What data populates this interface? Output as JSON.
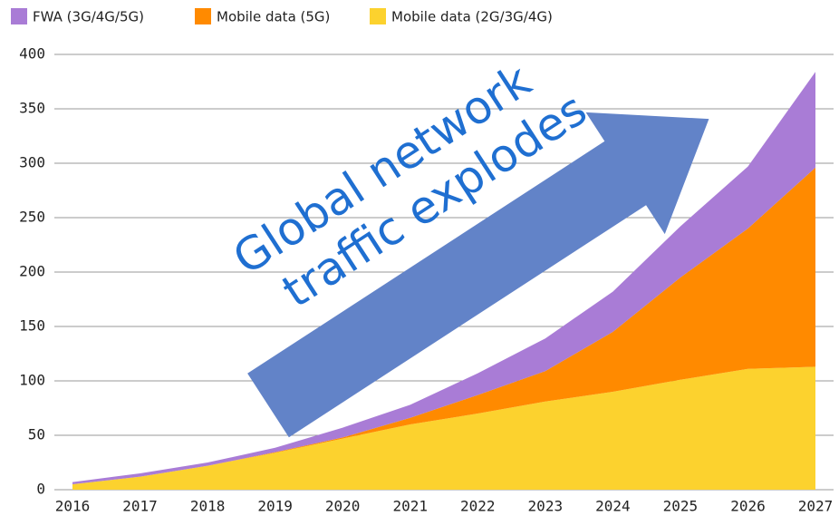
{
  "chart_data": {
    "type": "stacked_area",
    "categories": [
      "2016",
      "2017",
      "2018",
      "2019",
      "2020",
      "2021",
      "2022",
      "2023",
      "2024",
      "2025",
      "2026",
      "2027"
    ],
    "series": [
      {
        "name": "FWA (3G/4G/5G)",
        "color": "#a97cd6",
        "values": [
          2,
          3,
          3,
          4,
          9,
          12,
          20,
          30,
          37,
          47,
          57,
          88
        ]
      },
      {
        "name": "Mobile data (5G)",
        "color": "#ff8a00",
        "values": [
          0,
          0,
          0,
          0.5,
          1,
          6,
          17,
          28,
          55,
          94,
          129,
          183
        ]
      },
      {
        "name": "Mobile data (2G/3G/4G)",
        "color": "#fcd22e",
        "values": [
          5,
          12,
          22,
          34,
          47,
          60,
          70,
          81,
          90,
          101,
          111,
          113
        ]
      }
    ],
    "ylim": [
      0,
      400
    ],
    "yticks": [
      0,
      50,
      100,
      150,
      200,
      250,
      300,
      350,
      400
    ],
    "grid": true,
    "annotation": [
      "Global network",
      "traffic explodes"
    ]
  }
}
